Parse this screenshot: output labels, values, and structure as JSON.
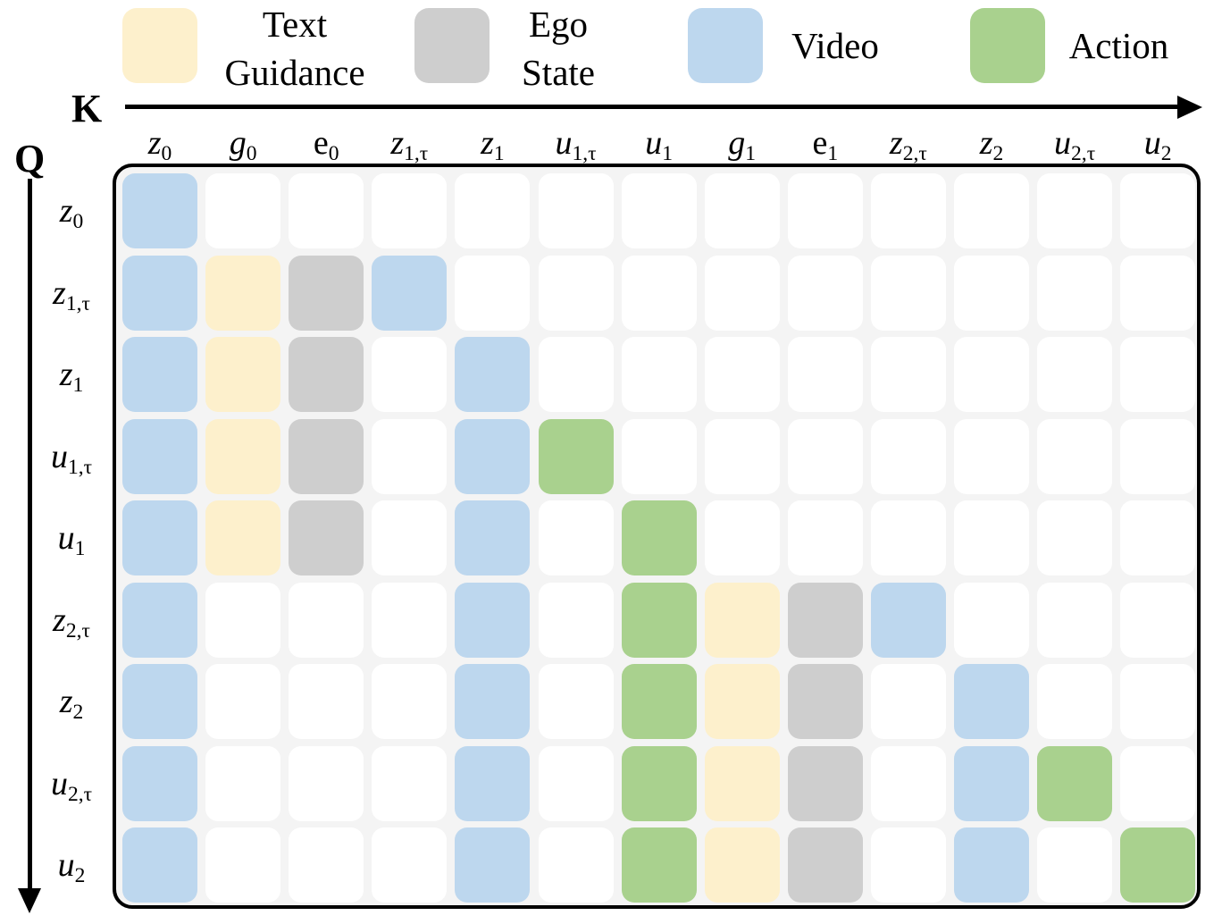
{
  "legend": [
    {
      "id": "text-guidance",
      "lines": [
        "Text",
        "Guidance"
      ],
      "color": "#fdf0cc"
    },
    {
      "id": "ego-state",
      "lines": [
        "Ego",
        "State"
      ],
      "color": "#cecece"
    },
    {
      "id": "video",
      "lines": [
        "Video"
      ],
      "color": "#bdd7ee"
    },
    {
      "id": "action",
      "lines": [
        "Action"
      ],
      "color": "#a9d18e"
    }
  ],
  "axes": {
    "key_label": "K",
    "query_label": "Q"
  },
  "tokens": [
    {
      "id": "z0",
      "base": "z",
      "sub": "0",
      "italic": true
    },
    {
      "id": "g0",
      "base": "g",
      "sub": "0",
      "italic": true
    },
    {
      "id": "e0",
      "base": "e",
      "sub": "0",
      "italic": false
    },
    {
      "id": "z1t",
      "base": "z",
      "sub": "1,τ",
      "italic": true
    },
    {
      "id": "z1",
      "base": "z",
      "sub": "1",
      "italic": true
    },
    {
      "id": "u1t",
      "base": "u",
      "sub": "1,τ",
      "italic": true
    },
    {
      "id": "u1",
      "base": "u",
      "sub": "1",
      "italic": true
    },
    {
      "id": "g1",
      "base": "g",
      "sub": "1",
      "italic": true
    },
    {
      "id": "e1",
      "base": "e",
      "sub": "1",
      "italic": false
    },
    {
      "id": "z2t",
      "base": "z",
      "sub": "2,τ",
      "italic": true
    },
    {
      "id": "z2",
      "base": "z",
      "sub": "2",
      "italic": true
    },
    {
      "id": "u2t",
      "base": "u",
      "sub": "2,τ",
      "italic": true
    },
    {
      "id": "u2",
      "base": "u",
      "sub": "2",
      "italic": true
    }
  ],
  "queries": [
    {
      "id": "z0",
      "base": "z",
      "sub": "0",
      "italic": true
    },
    {
      "id": "z1t",
      "base": "z",
      "sub": "1,τ",
      "italic": true
    },
    {
      "id": "z1",
      "base": "z",
      "sub": "1",
      "italic": true
    },
    {
      "id": "u1t",
      "base": "u",
      "sub": "1,τ",
      "italic": true
    },
    {
      "id": "u1",
      "base": "u",
      "sub": "1",
      "italic": true
    },
    {
      "id": "z2t",
      "base": "z",
      "sub": "2,τ",
      "italic": true
    },
    {
      "id": "z2",
      "base": "z",
      "sub": "2",
      "italic": true
    },
    {
      "id": "u2t",
      "base": "u",
      "sub": "2,τ",
      "italic": true
    },
    {
      "id": "u2",
      "base": "u",
      "sub": "2",
      "italic": true
    }
  ],
  "mask_colors": {
    "V": "#bdd7ee",
    "T": "#fdf0cc",
    "E": "#cecece",
    "A": "#a9d18e",
    ".": "#ffffff"
  },
  "attention_mask": [
    "V............",
    "VTEV.........",
    "VTE.V........",
    "VTE.VA.......",
    "VTE.V.A......",
    "V...V.ATEV...",
    "V...V.ATE.V..",
    "V...V.ATE.VA.",
    "V...V.ATE.V.A"
  ]
}
